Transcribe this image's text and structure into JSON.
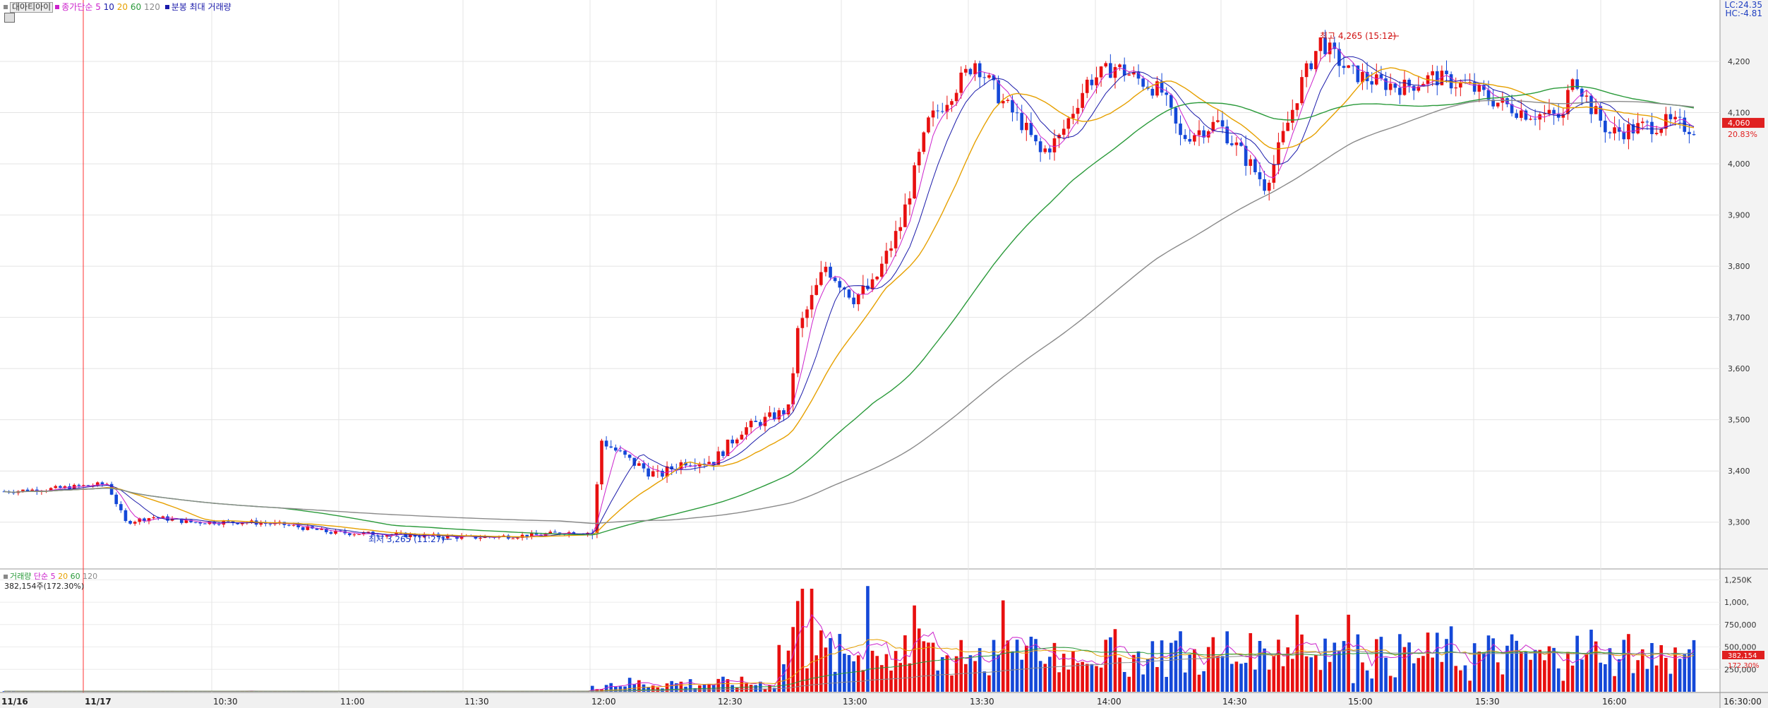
{
  "legend_price": {
    "stock_name": "대아티아이",
    "ma_title": "종가단순",
    "periods": [
      "5",
      "10",
      "20",
      "60",
      "120"
    ],
    "minute_label": "분봉 최대 거래량"
  },
  "legend_volume": {
    "title": "거래량",
    "ma_title": "단순",
    "periods": [
      "5",
      "20",
      "60",
      "120"
    ],
    "current": "382,154주(172.30%)"
  },
  "top_right": {
    "lc": "LC:24.35",
    "hc": "HC:-4.81"
  },
  "colors": {
    "up": "#e81010",
    "down": "#1448d8",
    "ma5": "#cc22cc",
    "ma10": "#1a1aaa",
    "ma20": "#e6a000",
    "ma60": "#2a9a3a",
    "ma120": "#8a8a8a",
    "cursor": "#ff3030"
  },
  "chart_data": [
    {
      "type": "candlestick",
      "title": "",
      "y_ticks": [
        "3,300",
        "3,400",
        "3,500",
        "3,600",
        "3,700",
        "3,800",
        "3,900",
        "4,000",
        "4,100",
        "4,200"
      ],
      "y_tick_values": [
        3300,
        3400,
        3500,
        3600,
        3700,
        3800,
        3900,
        4000,
        4100,
        4200
      ],
      "ylim": [
        3210,
        4320
      ],
      "x_tick_labels": [
        "11/16",
        "11/17",
        "10:30",
        "11:00",
        "11:30",
        "12:00",
        "12:30",
        "13:00",
        "13:30",
        "14:00",
        "14:30",
        "15:00",
        "15:30",
        "16:00",
        "16:30:00"
      ],
      "current_price": "4,060",
      "current_change": "20.83%",
      "high_annotation": "최고 4,265 (15:12)",
      "low_annotation": "최저 3,265 (11:27)",
      "price_anchors": [
        [
          0,
          3360
        ],
        [
          10,
          3365
        ],
        [
          22,
          3375
        ],
        [
          26,
          3300
        ],
        [
          32,
          3310
        ],
        [
          40,
          3300
        ],
        [
          52,
          3300
        ],
        [
          60,
          3295
        ],
        [
          70,
          3280
        ],
        [
          85,
          3275
        ],
        [
          100,
          3270
        ],
        [
          115,
          3275
        ],
        [
          120,
          3280
        ],
        [
          126,
          3280
        ],
        [
          128,
          3460
        ],
        [
          134,
          3420
        ],
        [
          140,
          3390
        ],
        [
          146,
          3420
        ],
        [
          152,
          3420
        ],
        [
          158,
          3480
        ],
        [
          168,
          3520
        ],
        [
          170,
          3670
        ],
        [
          176,
          3800
        ],
        [
          182,
          3740
        ],
        [
          186,
          3760
        ],
        [
          192,
          3880
        ],
        [
          198,
          4080
        ],
        [
          208,
          4200
        ],
        [
          214,
          4120
        ],
        [
          218,
          4080
        ],
        [
          222,
          4020
        ],
        [
          226,
          4050
        ],
        [
          232,
          4160
        ],
        [
          238,
          4190
        ],
        [
          244,
          4160
        ],
        [
          248,
          4140
        ],
        [
          252,
          4050
        ],
        [
          260,
          4080
        ],
        [
          266,
          4010
        ],
        [
          270,
          3960
        ],
        [
          272,
          4000
        ],
        [
          278,
          4160
        ],
        [
          282,
          4240
        ],
        [
          288,
          4180
        ],
        [
          294,
          4160
        ],
        [
          300,
          4150
        ],
        [
          306,
          4170
        ],
        [
          314,
          4150
        ],
        [
          320,
          4120
        ],
        [
          326,
          4100
        ],
        [
          334,
          4090
        ],
        [
          336,
          4180
        ],
        [
          340,
          4110
        ],
        [
          344,
          4060
        ],
        [
          350,
          4070
        ],
        [
          356,
          4080
        ],
        [
          362,
          4070
        ]
      ],
      "bar_count": 363,
      "series": [
        {
          "name": "5",
          "period": 5
        },
        {
          "name": "10",
          "period": 10
        },
        {
          "name": "20",
          "period": 20
        },
        {
          "name": "60",
          "period": 60
        },
        {
          "name": "120",
          "period": 120
        }
      ]
    },
    {
      "type": "bar",
      "title": "",
      "y_ticks": [
        "1,250K",
        "1,000,",
        "750,000",
        "500,000",
        "250,000"
      ],
      "y_tick_values": [
        1250000,
        1000000,
        750000,
        500000,
        250000
      ],
      "ylim": [
        0,
        1300000
      ],
      "current_volume": "382,154",
      "current_ratio": "172.30%"
    }
  ]
}
